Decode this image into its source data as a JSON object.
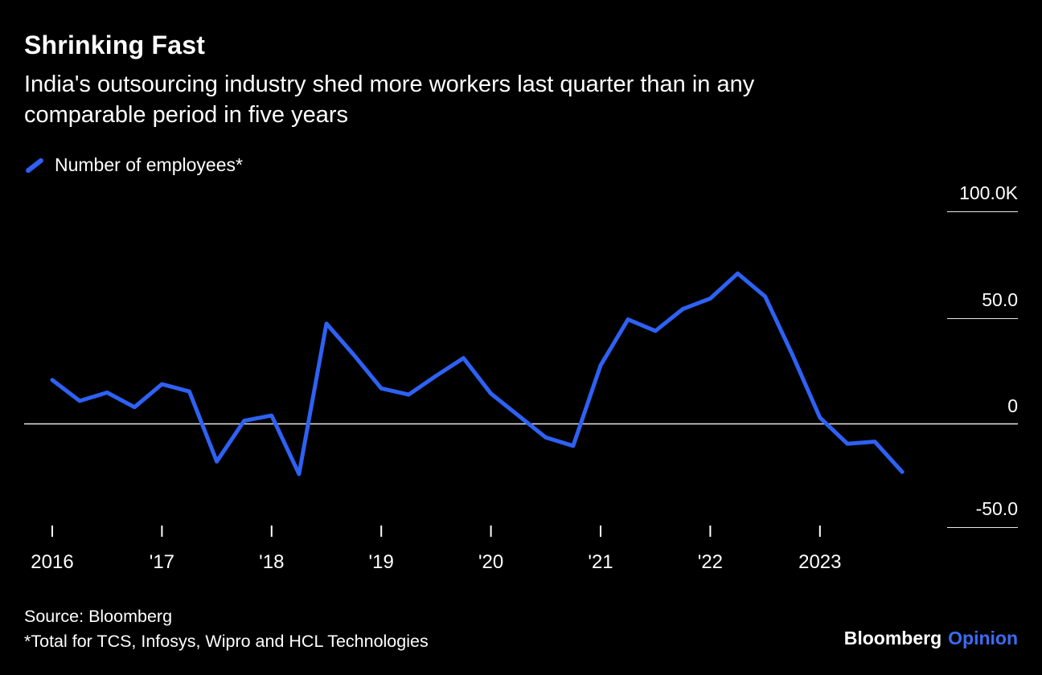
{
  "header": {
    "title": "Shrinking Fast",
    "subtitle_lines": [
      "India's outsourcing industry shed more workers last quarter than in any",
      "comparable period in five years"
    ]
  },
  "legend": {
    "label": "Number of employees*"
  },
  "chart_data": {
    "type": "line",
    "title": "Shrinking Fast",
    "subtitle": "India's outsourcing industry shed more workers last quarter than in any comparable period in five years",
    "unit": "thousands (quarterly change)",
    "line_color": "#2e61f4",
    "background": "#000000",
    "grid": "zero-line-only",
    "legend_position": "top-left",
    "x": [
      "2016 Q1",
      "2016 Q2",
      "2016 Q3",
      "2016 Q4",
      "2017 Q1",
      "2017 Q2",
      "2017 Q3",
      "2017 Q4",
      "2018 Q1",
      "2018 Q2",
      "2018 Q3",
      "2018 Q4",
      "2019 Q1",
      "2019 Q2",
      "2019 Q3",
      "2019 Q4",
      "2020 Q1",
      "2020 Q2",
      "2020 Q3",
      "2020 Q4",
      "2021 Q1",
      "2021 Q2",
      "2021 Q3",
      "2021 Q4",
      "2022 Q1",
      "2022 Q2",
      "2022 Q3",
      "2022 Q4",
      "2023 Q1",
      "2023 Q2",
      "2023 Q3",
      "2023 Q4"
    ],
    "series": [
      {
        "name": "Number of employees*",
        "values": [
          21,
          11,
          15,
          8,
          19,
          15.5,
          -18,
          1.5,
          4,
          -24,
          48,
          33,
          17,
          14,
          23,
          31.5,
          14.5,
          4,
          -6.5,
          -10.5,
          28,
          50,
          44.5,
          55,
          60,
          72,
          61,
          33,
          3,
          -9.5,
          -8.5,
          -23
        ]
      }
    ],
    "x_tick_labels": [
      "2016",
      "'17",
      "'18",
      "'19",
      "'20",
      "'21",
      "'22",
      "2023"
    ],
    "y_axis": [
      {
        "label": "100.0K",
        "value": 100
      },
      {
        "label": "50.0",
        "value": 50
      },
      {
        "label": "0",
        "value": 0
      },
      {
        "label": "-50.0",
        "value": -50
      }
    ],
    "ylim": [
      -60,
      110
    ]
  },
  "footer": {
    "source": "Source: Bloomberg",
    "note": "*Total for TCS, Infosys, Wipro and HCL Technologies",
    "brand": "Bloomberg",
    "brand_suffix": "Opinion",
    "brand_color": "#3a6cf4"
  }
}
